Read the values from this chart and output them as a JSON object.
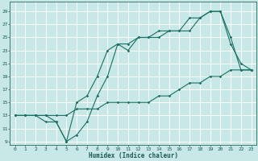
{
  "xlabel": "Humidex (Indice chaleur)",
  "bg_color": "#c8e8e8",
  "grid_color": "#ffffff",
  "line_color": "#1a7060",
  "xlim": [
    -0.5,
    23.5
  ],
  "ylim": [
    8.5,
    30.5
  ],
  "xticks": [
    0,
    1,
    2,
    3,
    4,
    5,
    6,
    7,
    8,
    9,
    10,
    11,
    12,
    13,
    14,
    15,
    16,
    17,
    18,
    19,
    20,
    21,
    22,
    23
  ],
  "yticks": [
    9,
    11,
    13,
    15,
    17,
    19,
    21,
    23,
    25,
    27,
    29
  ],
  "line1_x": [
    0,
    1,
    2,
    3,
    4,
    5,
    6,
    7,
    8,
    9,
    10,
    11,
    12,
    13,
    14,
    15,
    16,
    17,
    18,
    19,
    20,
    21,
    22,
    23
  ],
  "line1_y": [
    13,
    13,
    13,
    13,
    12,
    9,
    15,
    16,
    19,
    23,
    24,
    24,
    25,
    25,
    25,
    26,
    26,
    26,
    28,
    29,
    29,
    24,
    21,
    20
  ],
  "line2_x": [
    0,
    1,
    2,
    3,
    4,
    5,
    6,
    7,
    8,
    9,
    10,
    11,
    12,
    13,
    14,
    15,
    16,
    17,
    18,
    19,
    20,
    21,
    22,
    23
  ],
  "line2_y": [
    13,
    13,
    13,
    12,
    12,
    9,
    10,
    12,
    16,
    19,
    24,
    23,
    25,
    25,
    26,
    26,
    26,
    28,
    28,
    29,
    29,
    25,
    20,
    20
  ],
  "line3_x": [
    0,
    1,
    2,
    3,
    4,
    5,
    6,
    7,
    8,
    9,
    10,
    11,
    12,
    13,
    14,
    15,
    16,
    17,
    18,
    19,
    20,
    21,
    22,
    23
  ],
  "line3_y": [
    13,
    13,
    13,
    13,
    13,
    13,
    14,
    14,
    14,
    15,
    15,
    15,
    15,
    15,
    16,
    16,
    17,
    18,
    18,
    19,
    19,
    20,
    20,
    20
  ]
}
